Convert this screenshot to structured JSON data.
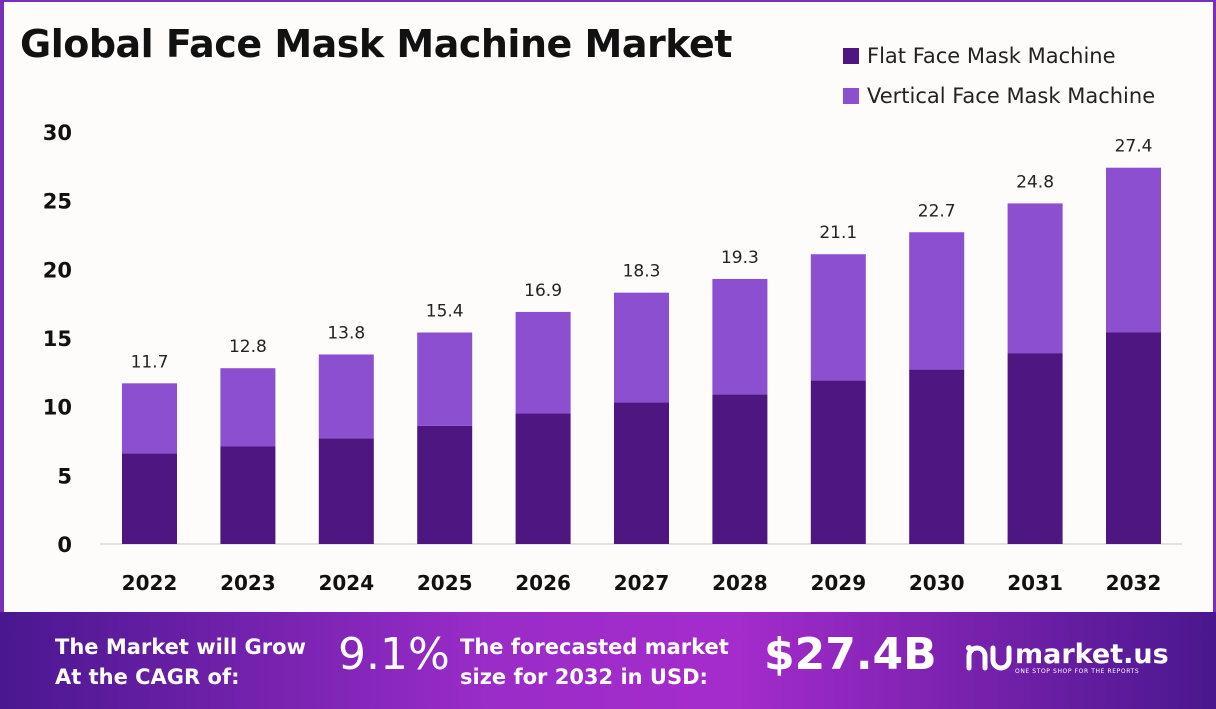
{
  "chart_data": {
    "type": "bar",
    "stacked": true,
    "title": "Global Face Mask Machine Market",
    "categories": [
      "2022",
      "2023",
      "2024",
      "2025",
      "2026",
      "2027",
      "2028",
      "2029",
      "2030",
      "2031",
      "2032"
    ],
    "totals": [
      "11.7",
      "12.8",
      "13.8",
      "15.4",
      "16.9",
      "18.3",
      "19.3",
      "21.1",
      "22.7",
      "24.8",
      "27.4"
    ],
    "series": [
      {
        "name": "Flat Face Mask Machine",
        "color": "#4e1680",
        "values": [
          6.6,
          7.1,
          7.7,
          8.6,
          9.5,
          10.3,
          10.9,
          11.9,
          12.7,
          13.9,
          15.4
        ]
      },
      {
        "name": "Vertical Face Mask Machine",
        "color": "#8b4fd0",
        "values": [
          5.1,
          5.7,
          6.1,
          6.8,
          7.4,
          8.0,
          8.4,
          9.2,
          10.0,
          10.9,
          12.0
        ]
      }
    ],
    "yticks": [
      "0",
      "5",
      "10",
      "15",
      "20",
      "25",
      "30"
    ],
    "ylim": [
      0,
      30
    ],
    "grid": false,
    "legend": "top-right"
  },
  "footer": {
    "cagr_label_1": "The Market will Grow",
    "cagr_label_2": "At the CAGR of:",
    "cagr_value": "9.1%",
    "forecast_label_1": "The forecasted market",
    "forecast_label_2": "size for 2032 in USD:",
    "forecast_value": "$27.4B",
    "logo_name": "market.us",
    "logo_tagline": "ONE STOP SHOP FOR THE REPORTS"
  }
}
